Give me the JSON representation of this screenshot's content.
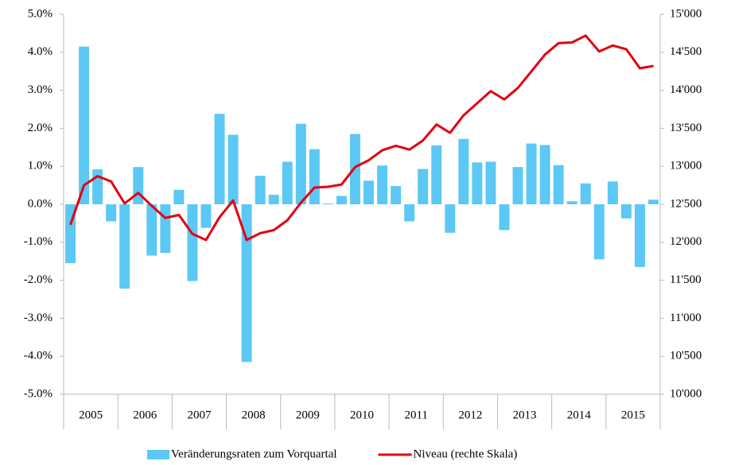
{
  "chart_data": {
    "type": "bar-line",
    "categories": [
      "2005",
      null,
      null,
      null,
      "2006",
      null,
      null,
      null,
      "2007",
      null,
      null,
      null,
      "2008",
      null,
      null,
      null,
      "2009",
      null,
      null,
      null,
      "2010",
      null,
      null,
      null,
      "2011",
      null,
      null,
      null,
      "2012",
      null,
      null,
      null,
      "2013",
      null,
      null,
      null,
      "2014",
      null,
      null,
      null,
      "2015",
      null,
      null,
      null
    ],
    "series": [
      {
        "name": "Veränderungsraten zum Vorquartal",
        "type": "bar",
        "color": "#5bc8f5",
        "axis": "y",
        "values": [
          -1.55,
          4.15,
          0.92,
          -0.45,
          -2.22,
          0.98,
          -1.35,
          -1.28,
          0.38,
          -2.02,
          -0.62,
          2.38,
          1.83,
          -4.15,
          0.75,
          0.25,
          1.12,
          2.12,
          1.45,
          0.02,
          0.22,
          1.85,
          0.62,
          1.02,
          0.48,
          -0.45,
          0.93,
          1.55,
          -0.75,
          1.72,
          1.1,
          1.12,
          -0.68,
          0.98,
          1.6,
          1.56,
          1.03,
          0.08,
          0.55,
          -1.45,
          0.6,
          -0.37,
          -1.65,
          0.12
        ]
      },
      {
        "name": "Niveau (rechte Skala)",
        "type": "line",
        "color": "#e3000f",
        "axis": "y2",
        "values": [
          12230,
          12750,
          12870,
          12800,
          12510,
          12650,
          12480,
          12320,
          12360,
          12110,
          12030,
          12330,
          12550,
          12030,
          12120,
          12160,
          12290,
          12520,
          12720,
          12730,
          12760,
          12990,
          13080,
          13210,
          13270,
          13220,
          13340,
          13550,
          13440,
          13670,
          13830,
          13990,
          13880,
          14030,
          14250,
          14470,
          14620,
          14630,
          14720,
          14510,
          14590,
          14540,
          14290,
          14320
        ]
      }
    ],
    "ylim": [
      -5,
      5
    ],
    "yticks": [
      {
        "value": -5,
        "label": "-5.0%"
      },
      {
        "value": -4,
        "label": "-4.0%"
      },
      {
        "value": -3,
        "label": "-3.0%"
      },
      {
        "value": -2,
        "label": "-2.0%"
      },
      {
        "value": -1,
        "label": "-1.0%"
      },
      {
        "value": 0,
        "label": "0.0%"
      },
      {
        "value": 1,
        "label": "1.0%"
      },
      {
        "value": 2,
        "label": "2.0%"
      },
      {
        "value": 3,
        "label": "3.0%"
      },
      {
        "value": 4,
        "label": "4.0%"
      },
      {
        "value": 5,
        "label": "5.0%"
      }
    ],
    "y2lim": [
      10000,
      15000
    ],
    "y2ticks": [
      {
        "value": 10000,
        "label": "10'000"
      },
      {
        "value": 10500,
        "label": "10'500"
      },
      {
        "value": 11000,
        "label": "11'000"
      },
      {
        "value": 11500,
        "label": "11'500"
      },
      {
        "value": 12000,
        "label": "12'000"
      },
      {
        "value": 12500,
        "label": "12'500"
      },
      {
        "value": 13000,
        "label": "13'000"
      },
      {
        "value": 13500,
        "label": "13'500"
      },
      {
        "value": 14000,
        "label": "14'000"
      },
      {
        "value": 14500,
        "label": "14'500"
      },
      {
        "value": 15000,
        "label": "15'000"
      }
    ],
    "grid": false,
    "legend": "bottom"
  }
}
